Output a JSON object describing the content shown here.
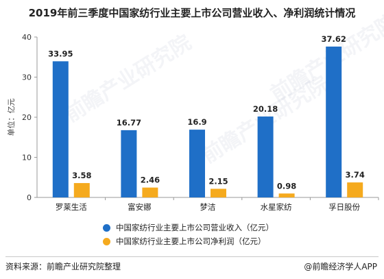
{
  "title": "2019年前三季度中国家纺行业主要上市公司营业收入、净利润统计情况",
  "watermark": "前瞻产业研究院",
  "footer": {
    "source": "资料来源：前瞻产业研究院整理",
    "brand": "@前瞻经济学人APP"
  },
  "colors": {
    "revenue": "#1f6fc7",
    "profit": "#f5aa1e"
  },
  "chart_data": {
    "type": "bar",
    "categories": [
      "罗莱生活",
      "富安娜",
      "梦洁",
      "水星家纺",
      "孚日股份"
    ],
    "series": [
      {
        "name": "中国家纺行业主要上市公司营业收入（亿元）",
        "values": [
          33.95,
          16.77,
          16.9,
          20.18,
          37.62
        ]
      },
      {
        "name": "中国家纺行业主要上市公司净利润（亿元）",
        "values": [
          3.58,
          2.46,
          2.15,
          0.98,
          3.74
        ]
      }
    ],
    "data_labels": [
      [
        "33.95",
        "16.77",
        "16.9",
        "20.18",
        "37.62"
      ],
      [
        "3.58",
        "2.46",
        "2.15",
        "0.98",
        "3.74"
      ]
    ],
    "ylabel": "单位：亿元",
    "ylim": [
      0,
      40
    ],
    "yticks": [
      "0",
      "10",
      "20",
      "30",
      "40"
    ],
    "grid": false,
    "legend": "bottom"
  }
}
